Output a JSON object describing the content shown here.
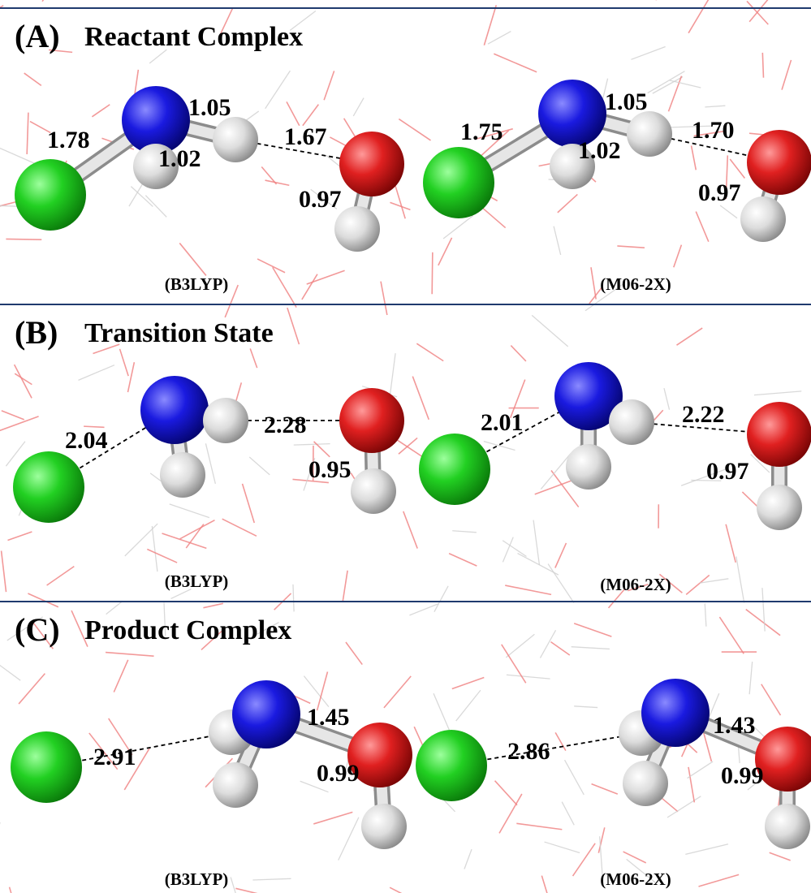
{
  "panels": [
    {
      "label": "(A)",
      "title": "Reactant Complex",
      "structures": [
        {
          "method": "(B3LYP)",
          "distances": [
            "1.78",
            "1.05",
            "1.02",
            "1.67",
            "0.97"
          ]
        },
        {
          "method": "(M06-2X)",
          "distances": [
            "1.75",
            "1.05",
            "1.02",
            "1.70",
            "0.97"
          ]
        }
      ]
    },
    {
      "label": "(B)",
      "title": "Transition State",
      "structures": [
        {
          "method": "(B3LYP)",
          "distances": [
            "2.04",
            "2.28",
            "0.95"
          ]
        },
        {
          "method": "(M06-2X)",
          "distances": [
            "2.01",
            "2.22",
            "0.97"
          ]
        }
      ]
    },
    {
      "label": "(C)",
      "title": "Product Complex",
      "structures": [
        {
          "method": "(B3LYP)",
          "distances": [
            "2.91",
            "1.45",
            "0.99"
          ]
        },
        {
          "method": "(M06-2X)",
          "distances": [
            "2.86",
            "1.43",
            "0.99"
          ]
        }
      ]
    }
  ]
}
